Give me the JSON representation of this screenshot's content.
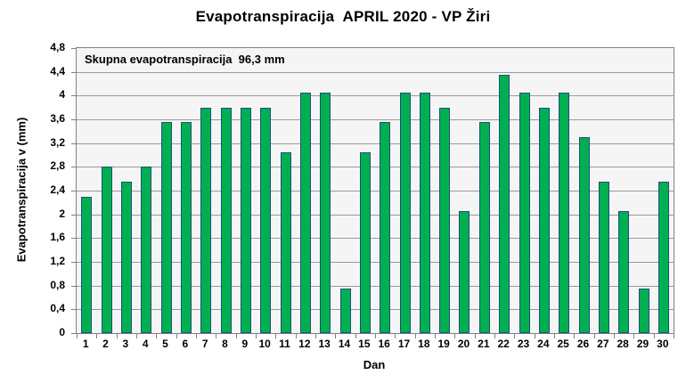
{
  "chart_data": {
    "type": "bar",
    "title": "Evapotranspiracija  APRIL 2020 - VP Žiri",
    "annotation": "Skupna evapotranspiracija  96,3 mm",
    "total_label_value_mm": "96,3",
    "xlabel": "Dan",
    "ylabel": "Evapotranspiracija v (mm)",
    "categories": [
      "1",
      "2",
      "3",
      "4",
      "5",
      "6",
      "7",
      "8",
      "9",
      "10",
      "11",
      "12",
      "13",
      "14",
      "15",
      "16",
      "17",
      "18",
      "19",
      "20",
      "21",
      "22",
      "23",
      "24",
      "25",
      "26",
      "27",
      "28",
      "29",
      "30"
    ],
    "values": [
      2.3,
      2.8,
      2.55,
      2.8,
      3.55,
      3.55,
      3.8,
      3.8,
      3.8,
      3.8,
      3.05,
      4.05,
      4.05,
      0.75,
      3.05,
      3.55,
      4.05,
      4.05,
      3.8,
      2.05,
      3.55,
      4.35,
      4.05,
      3.8,
      4.05,
      3.3,
      2.55,
      2.05,
      0.75,
      2.55
    ],
    "ylim": [
      0,
      4.8
    ],
    "ytick_step": 0.4,
    "yticks": [
      {
        "v": 0,
        "label": "0"
      },
      {
        "v": 0.4,
        "label": "0,4"
      },
      {
        "v": 0.8,
        "label": "0,8"
      },
      {
        "v": 1.2,
        "label": "1,2"
      },
      {
        "v": 1.6,
        "label": "1,6"
      },
      {
        "v": 2,
        "label": "2"
      },
      {
        "v": 2.4,
        "label": "2,4"
      },
      {
        "v": 2.8,
        "label": "2,8"
      },
      {
        "v": 3.2,
        "label": "3,2"
      },
      {
        "v": 3.6,
        "label": "3,6"
      },
      {
        "v": 4,
        "label": "4"
      },
      {
        "v": 4.4,
        "label": "4,4"
      },
      {
        "v": 4.8,
        "label": "4,8"
      }
    ],
    "grid": true,
    "legend": false
  },
  "colors": {
    "bar_fill": "#00B050",
    "bar_border": "#1F4E79",
    "plot_bg": "#F5F5F5",
    "gridline": "#9A9A9A",
    "plot_border": "#808080",
    "background": "#FFFFFF",
    "text": "#000000"
  }
}
